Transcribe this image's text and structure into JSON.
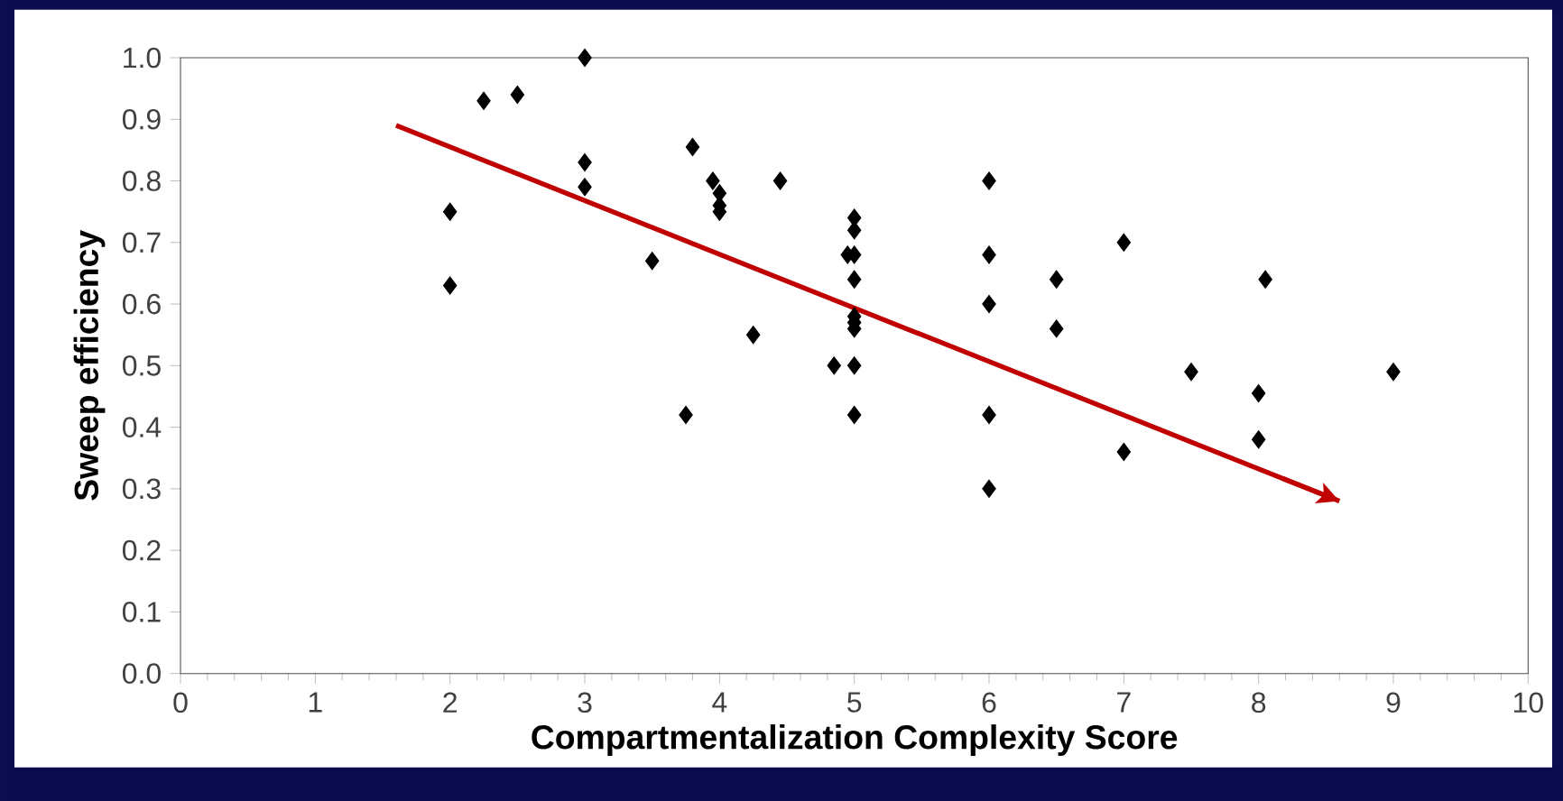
{
  "chart_data": {
    "type": "scatter",
    "xlabel": "Compartmentalization Complexity Score",
    "ylabel": "Sweep efficiency",
    "xlim": [
      0,
      10
    ],
    "xticks": [
      0,
      1,
      2,
      3,
      4,
      5,
      6,
      7,
      8,
      9,
      10
    ],
    "ylim": [
      0,
      1
    ],
    "yticks": [
      {
        "value": 0,
        "label": "0.0"
      },
      0.1,
      0.2,
      0.3,
      0.4,
      0.5,
      0.6,
      0.7,
      0.8,
      0.9,
      {
        "value": 1,
        "label": "1.0"
      }
    ],
    "marker": "diamond",
    "grid": false,
    "series": [
      {
        "color": "#000000",
        "x": [
          3,
          2.25,
          2.5,
          2,
          2,
          3,
          3,
          3.5,
          3.8,
          3.95,
          4,
          4,
          4,
          4.45,
          4.25,
          3.75,
          4.85,
          5,
          5,
          4.95,
          5,
          5,
          5,
          5,
          5,
          5,
          5,
          6,
          6,
          6,
          6,
          6,
          6.5,
          6.5,
          7,
          7,
          7.5,
          8,
          8,
          8.05,
          9
        ],
        "values": [
          1.0,
          0.93,
          0.94,
          0.75,
          0.63,
          0.83,
          0.79,
          0.67,
          0.855,
          0.8,
          0.78,
          0.76,
          0.75,
          0.8,
          0.55,
          0.42,
          0.5,
          0.74,
          0.72,
          0.68,
          0.68,
          0.64,
          0.58,
          0.57,
          0.56,
          0.5,
          0.42,
          0.8,
          0.68,
          0.6,
          0.42,
          0.3,
          0.64,
          0.56,
          0.7,
          0.36,
          0.49,
          0.455,
          0.38,
          0.64,
          0.49
        ]
      },
      {
        "type": "line",
        "marker": "none",
        "color": "#c00000",
        "x": [
          1.6,
          8.6
        ],
        "values": [
          0.89,
          0.28
        ]
      }
    ]
  }
}
